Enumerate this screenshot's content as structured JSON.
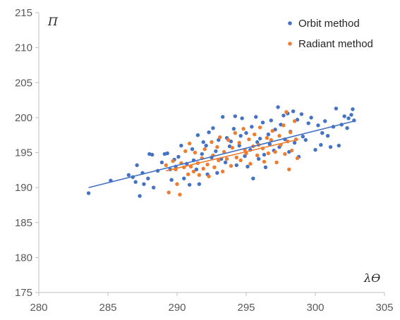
{
  "chart_data": {
    "type": "scatter",
    "title": "",
    "xlabel": "λϴ",
    "ylabel": "Π",
    "xlim": [
      280,
      305
    ],
    "ylim": [
      175,
      215
    ],
    "x_ticks": [
      280,
      285,
      290,
      295,
      300,
      305
    ],
    "y_ticks": [
      175,
      180,
      185,
      190,
      195,
      200,
      205,
      210,
      215
    ],
    "grid": false,
    "legend_position": "top-right",
    "colors": {
      "orbit": "#4472C4",
      "radiant": "#ED7D31"
    },
    "series": [
      {
        "name": "Orbit method",
        "color": "#4472C4",
        "points": [
          [
            283.6,
            189.2
          ],
          [
            285.2,
            191.0
          ],
          [
            286.5,
            191.8
          ],
          [
            286.8,
            191.5
          ],
          [
            287.0,
            190.8
          ],
          [
            287.1,
            193.2
          ],
          [
            287.3,
            188.8
          ],
          [
            287.5,
            192.1
          ],
          [
            287.6,
            190.5
          ],
          [
            287.9,
            191.3
          ],
          [
            288.0,
            194.8
          ],
          [
            288.2,
            194.7
          ],
          [
            288.3,
            190.0
          ],
          [
            288.6,
            192.4
          ],
          [
            288.9,
            193.6
          ],
          [
            289.1,
            194.8
          ],
          [
            289.3,
            194.9
          ],
          [
            289.5,
            192.6
          ],
          [
            289.6,
            191.1
          ],
          [
            289.8,
            194.0
          ],
          [
            289.9,
            193.0
          ],
          [
            290.1,
            194.4
          ],
          [
            290.3,
            196.0
          ],
          [
            290.5,
            191.3
          ],
          [
            290.7,
            193.4
          ],
          [
            290.9,
            190.4
          ],
          [
            291.1,
            195.5
          ],
          [
            291.2,
            193.9
          ],
          [
            291.4,
            192.6
          ],
          [
            291.5,
            197.5
          ],
          [
            291.6,
            190.5
          ],
          [
            291.8,
            194.8
          ],
          [
            291.9,
            196.5
          ],
          [
            292.1,
            196.0
          ],
          [
            292.2,
            191.9
          ],
          [
            292.3,
            197.9
          ],
          [
            292.5,
            194.3
          ],
          [
            292.6,
            198.5
          ],
          [
            292.8,
            195.2
          ],
          [
            292.9,
            192.1
          ],
          [
            293.0,
            196.8
          ],
          [
            293.2,
            194.1
          ],
          [
            293.3,
            200.1
          ],
          [
            293.5,
            193.6
          ],
          [
            293.6,
            197.1
          ],
          [
            293.8,
            195.9
          ],
          [
            293.9,
            196.6
          ],
          [
            294.1,
            198.4
          ],
          [
            294.2,
            200.2
          ],
          [
            294.3,
            193.2
          ],
          [
            294.5,
            196.0
          ],
          [
            294.6,
            197.4
          ],
          [
            294.7,
            199.9
          ],
          [
            294.9,
            194.5
          ],
          [
            295.0,
            197.8
          ],
          [
            295.1,
            193.0
          ],
          [
            295.3,
            195.4
          ],
          [
            295.4,
            198.7
          ],
          [
            295.5,
            191.3
          ],
          [
            295.7,
            200.1
          ],
          [
            295.8,
            196.5
          ],
          [
            295.9,
            194.1
          ],
          [
            296.0,
            197.0
          ],
          [
            296.2,
            199.3
          ],
          [
            296.3,
            194.7
          ],
          [
            296.4,
            192.9
          ],
          [
            296.6,
            197.6
          ],
          [
            296.7,
            196.2
          ],
          [
            296.8,
            199.6
          ],
          [
            297.0,
            195.3
          ],
          [
            297.1,
            198.3
          ],
          [
            297.3,
            201.5
          ],
          [
            297.4,
            195.8
          ],
          [
            297.5,
            199.0
          ],
          [
            297.7,
            200.3
          ],
          [
            297.8,
            196.9
          ],
          [
            298.0,
            200.6
          ],
          [
            298.1,
            195.1
          ],
          [
            298.2,
            198.0
          ],
          [
            298.4,
            200.9
          ],
          [
            298.5,
            196.4
          ],
          [
            298.7,
            199.7
          ],
          [
            298.8,
            194.4
          ],
          [
            299.0,
            200.5
          ],
          [
            299.1,
            197.3
          ],
          [
            299.3,
            196.8
          ],
          [
            299.5,
            199.2
          ],
          [
            299.7,
            200.0
          ],
          [
            300.0,
            195.4
          ],
          [
            300.2,
            198.9
          ],
          [
            300.4,
            196.1
          ],
          [
            300.5,
            197.8
          ],
          [
            300.7,
            199.5
          ],
          [
            300.9,
            197.4
          ],
          [
            301.1,
            195.8
          ],
          [
            301.3,
            198.7
          ],
          [
            301.5,
            201.3
          ],
          [
            301.7,
            196.0
          ],
          [
            301.9,
            199.0
          ],
          [
            302.1,
            200.2
          ],
          [
            302.3,
            198.5
          ],
          [
            302.4,
            199.9
          ],
          [
            302.6,
            200.4
          ],
          [
            302.7,
            201.2
          ],
          [
            302.8,
            199.6
          ]
        ]
      },
      {
        "name": "Radiant method",
        "color": "#ED7D31",
        "points": [
          [
            289.2,
            193.2
          ],
          [
            289.4,
            189.3
          ],
          [
            289.7,
            193.8
          ],
          [
            289.9,
            192.6
          ],
          [
            290.0,
            190.5
          ],
          [
            290.2,
            189.0
          ],
          [
            290.3,
            193.5
          ],
          [
            290.5,
            192.9
          ],
          [
            290.6,
            195.2
          ],
          [
            290.8,
            191.9
          ],
          [
            290.9,
            196.3
          ],
          [
            291.0,
            193.0
          ],
          [
            291.2,
            192.3
          ],
          [
            291.3,
            195.0
          ],
          [
            291.5,
            193.5
          ],
          [
            291.6,
            191.8
          ],
          [
            291.8,
            194.2
          ],
          [
            291.9,
            192.7
          ],
          [
            292.0,
            195.5
          ],
          [
            292.2,
            193.3
          ],
          [
            292.3,
            191.6
          ],
          [
            292.5,
            196.5
          ],
          [
            292.6,
            194.6
          ],
          [
            292.7,
            192.9
          ],
          [
            292.9,
            195.8
          ],
          [
            293.0,
            193.9
          ],
          [
            293.1,
            197.2
          ],
          [
            293.3,
            192.3
          ],
          [
            293.4,
            195.1
          ],
          [
            293.6,
            194.1
          ],
          [
            293.7,
            196.8
          ],
          [
            293.9,
            193.1
          ],
          [
            294.0,
            195.7
          ],
          [
            294.2,
            197.8
          ],
          [
            294.3,
            194.3
          ],
          [
            294.5,
            196.4
          ],
          [
            294.6,
            193.9
          ],
          [
            294.8,
            198.4
          ],
          [
            294.9,
            195.4
          ],
          [
            295.0,
            194.9
          ],
          [
            295.2,
            196.9
          ],
          [
            295.3,
            193.4
          ],
          [
            295.5,
            195.9
          ],
          [
            295.6,
            197.6
          ],
          [
            295.8,
            194.6
          ],
          [
            295.9,
            196.1
          ],
          [
            296.0,
            198.6
          ],
          [
            296.2,
            195.6
          ],
          [
            296.3,
            193.7
          ],
          [
            296.5,
            197.1
          ],
          [
            296.6,
            194.9
          ],
          [
            296.8,
            196.8
          ],
          [
            296.9,
            198.1
          ],
          [
            297.1,
            195.1
          ],
          [
            297.2,
            193.6
          ],
          [
            297.4,
            197.4
          ],
          [
            297.5,
            196.1
          ],
          [
            297.7,
            198.9
          ],
          [
            297.8,
            194.8
          ],
          [
            297.9,
            200.8
          ],
          [
            298.0,
            196.6
          ],
          [
            298.1,
            192.6
          ],
          [
            298.2,
            197.9
          ],
          [
            298.3,
            195.3
          ],
          [
            298.5,
            199.5
          ],
          [
            298.6,
            196.9
          ],
          [
            298.7,
            194.2
          ]
        ]
      }
    ],
    "trendlines": [
      {
        "series": "Orbit method",
        "x": [
          283.6,
          302.8
        ],
        "y": [
          190.0,
          199.5
        ]
      },
      {
        "series": "Radiant method",
        "x": [
          289.2,
          298.8
        ],
        "y": [
          192.4,
          196.9
        ]
      }
    ]
  }
}
